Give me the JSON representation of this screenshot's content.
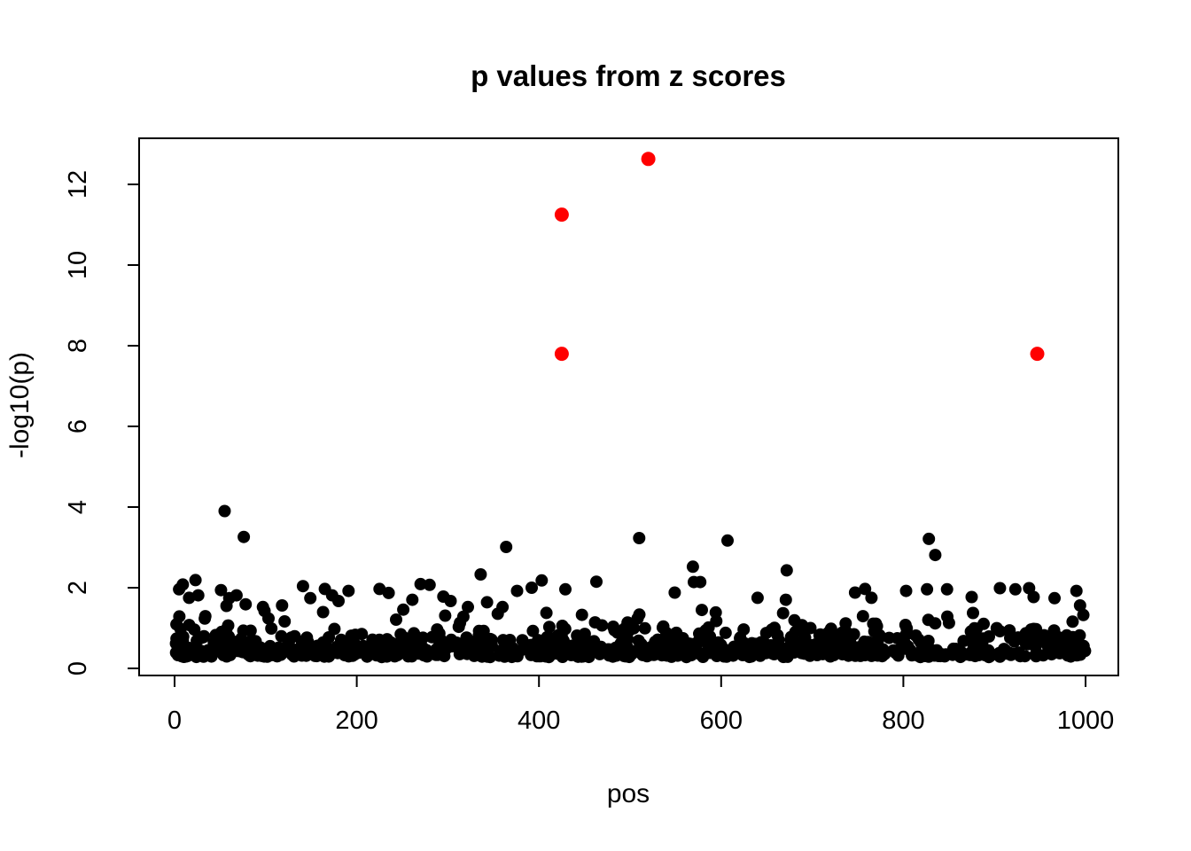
{
  "page": {
    "background_color": "#ffffff"
  },
  "chart_data": {
    "type": "scatter",
    "title": "p values from z scores",
    "xlabel": "pos",
    "ylabel": "-log10(p)",
    "x_ticks": [
      0,
      200,
      400,
      600,
      800,
      1000
    ],
    "y_ticks": [
      0,
      2,
      4,
      6,
      8,
      10,
      12
    ],
    "xlim": [
      -40,
      1040
    ],
    "ylim": [
      -0.18,
      13.14
    ],
    "grid": false,
    "legend": "none",
    "frame_color": "#000000",
    "point_color": "#000000",
    "highlight_color": "#ff0000",
    "n_points_total": 1000,
    "highlighted_points": [
      [
        520,
        12.63
      ],
      [
        425,
        11.25
      ],
      [
        425,
        7.8
      ],
      [
        947,
        7.8
      ]
    ],
    "outlier_points": [
      [
        55,
        3.9
      ],
      [
        76,
        3.26
      ],
      [
        364,
        3.01
      ],
      [
        510,
        3.23
      ],
      [
        607,
        3.17
      ],
      [
        828,
        3.21
      ],
      [
        835,
        2.81
      ],
      [
        569,
        2.52
      ],
      [
        672,
        2.43
      ],
      [
        336,
        2.33
      ],
      [
        9,
        2.08
      ],
      [
        23,
        2.19
      ],
      [
        141,
        2.04
      ],
      [
        270,
        2.09
      ],
      [
        280,
        2.07
      ],
      [
        392,
        2.0
      ],
      [
        403,
        2.18
      ],
      [
        463,
        2.15
      ],
      [
        570,
        2.14
      ],
      [
        577,
        2.14
      ],
      [
        5,
        1.96
      ],
      [
        51,
        1.94
      ],
      [
        165,
        1.97
      ],
      [
        191,
        1.92
      ],
      [
        225,
        1.97
      ],
      [
        376,
        1.92
      ],
      [
        429,
        1.96
      ],
      [
        758,
        1.97
      ],
      [
        803,
        1.92
      ],
      [
        826,
        1.96
      ],
      [
        848,
        1.96
      ],
      [
        906,
        1.99
      ],
      [
        923,
        1.96
      ],
      [
        938,
        1.99
      ],
      [
        990,
        1.92
      ],
      [
        16,
        1.75
      ],
      [
        26,
        1.81
      ],
      [
        57,
        1.55
      ],
      [
        60,
        1.74
      ],
      [
        68,
        1.81
      ],
      [
        78,
        1.59
      ],
      [
        97,
        1.52
      ],
      [
        118,
        1.56
      ],
      [
        149,
        1.74
      ],
      [
        173,
        1.81
      ],
      [
        180,
        1.67
      ],
      [
        235,
        1.87
      ],
      [
        261,
        1.7
      ],
      [
        295,
        1.78
      ],
      [
        303,
        1.67
      ],
      [
        322,
        1.52
      ],
      [
        343,
        1.64
      ],
      [
        360,
        1.52
      ],
      [
        549,
        1.88
      ],
      [
        640,
        1.75
      ],
      [
        671,
        1.7
      ],
      [
        747,
        1.88
      ],
      [
        765,
        1.75
      ],
      [
        875,
        1.77
      ],
      [
        943,
        1.77
      ],
      [
        966,
        1.74
      ],
      [
        994,
        1.56
      ]
    ],
    "background_band": {
      "n": 934,
      "x_range": [
        1,
        1000
      ],
      "y_min": 0.28,
      "y_max": 1.55,
      "distribution": "-log10 of uniform p-values, density decays upward; heavy overplotting near y = 0.3",
      "seed": 7
    }
  }
}
